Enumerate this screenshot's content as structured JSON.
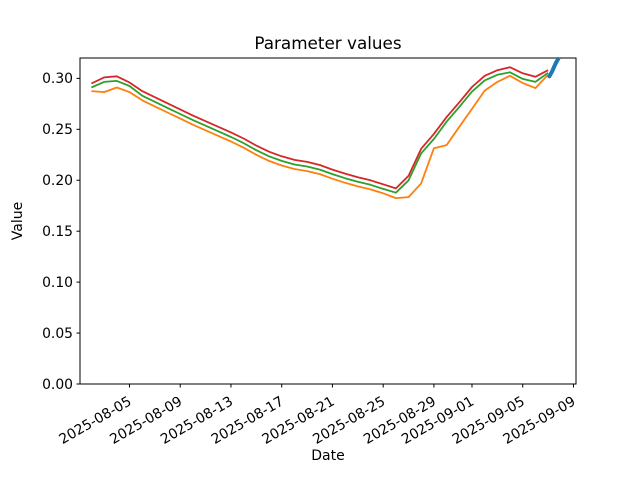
{
  "chart_data": {
    "type": "line",
    "title": "Parameter values",
    "xlabel": "Date",
    "ylabel": "Value",
    "grid": false,
    "legend": "none",
    "text_color": "#000000",
    "axis_color": "#000000",
    "x_dates": [
      "2025-08-02",
      "2025-08-03",
      "2025-08-04",
      "2025-08-05",
      "2025-08-06",
      "2025-08-07",
      "2025-08-08",
      "2025-08-09",
      "2025-08-10",
      "2025-08-11",
      "2025-08-12",
      "2025-08-13",
      "2025-08-14",
      "2025-08-15",
      "2025-08-16",
      "2025-08-17",
      "2025-08-18",
      "2025-08-19",
      "2025-08-20",
      "2025-08-21",
      "2025-08-22",
      "2025-08-23",
      "2025-08-24",
      "2025-08-25",
      "2025-08-26",
      "2025-08-27",
      "2025-08-28",
      "2025-08-29",
      "2025-08-30",
      "2025-08-31",
      "2025-09-01",
      "2025-09-02",
      "2025-09-03",
      "2025-09-04",
      "2025-09-05",
      "2025-09-06",
      "2025-09-07"
    ],
    "series": [
      {
        "name": "orange-line",
        "color": "#ff7f0e",
        "linewidth": 1.8,
        "values": [
          0.2875,
          0.2865,
          0.291,
          0.2865,
          0.2785,
          0.2725,
          0.2665,
          0.2605,
          0.2545,
          0.249,
          0.2435,
          0.238,
          0.232,
          0.225,
          0.219,
          0.2145,
          0.211,
          0.209,
          0.206,
          0.2015,
          0.1975,
          0.194,
          0.191,
          0.1872,
          0.1825,
          0.1835,
          0.197,
          0.2315,
          0.2345,
          0.2525,
          0.27,
          0.288,
          0.2965,
          0.3025,
          0.2955,
          0.2905,
          0.3035
        ]
      },
      {
        "name": "green-line",
        "color": "#2ca02c",
        "linewidth": 1.8,
        "values": [
          0.291,
          0.2965,
          0.2975,
          0.2925,
          0.283,
          0.277,
          0.271,
          0.265,
          0.259,
          0.2535,
          0.248,
          0.2425,
          0.2365,
          0.2295,
          0.2235,
          0.219,
          0.2155,
          0.2135,
          0.2105,
          0.206,
          0.202,
          0.1985,
          0.1955,
          0.1915,
          0.1878,
          0.2,
          0.2265,
          0.2405,
          0.2575,
          0.272,
          0.287,
          0.298,
          0.3035,
          0.306,
          0.2995,
          0.2965,
          0.3055
        ]
      },
      {
        "name": "red-line",
        "color": "#d62728",
        "linewidth": 1.8,
        "values": [
          0.295,
          0.301,
          0.302,
          0.296,
          0.2875,
          0.2815,
          0.2755,
          0.2695,
          0.2635,
          0.258,
          0.2525,
          0.247,
          0.241,
          0.234,
          0.228,
          0.2235,
          0.22,
          0.218,
          0.215,
          0.2105,
          0.2065,
          0.203,
          0.2,
          0.196,
          0.192,
          0.2045,
          0.231,
          0.2455,
          0.262,
          0.2765,
          0.2915,
          0.3025,
          0.308,
          0.311,
          0.305,
          0.3015,
          0.308
        ]
      }
    ],
    "highlight_series": {
      "name": "blue-line",
      "color": "#1f77b4",
      "linewidth": 4,
      "x_day_offsets": [
        36.1,
        36.3,
        36.5,
        36.65,
        36.8
      ],
      "values": [
        0.302,
        0.3065,
        0.312,
        0.316,
        0.319
      ]
    },
    "xticks": [
      {
        "label": "2025-08-05",
        "day_offset": 3
      },
      {
        "label": "2025-08-09",
        "day_offset": 7
      },
      {
        "label": "2025-08-13",
        "day_offset": 11
      },
      {
        "label": "2025-08-17",
        "day_offset": 15
      },
      {
        "label": "2025-08-21",
        "day_offset": 19
      },
      {
        "label": "2025-08-25",
        "day_offset": 23
      },
      {
        "label": "2025-08-29",
        "day_offset": 27
      },
      {
        "label": "2025-09-01",
        "day_offset": 30
      },
      {
        "label": "2025-09-05",
        "day_offset": 34
      },
      {
        "label": "2025-09-09",
        "day_offset": 38
      }
    ],
    "yticks": [
      {
        "label": "0.00",
        "value": 0.0
      },
      {
        "label": "0.05",
        "value": 0.05
      },
      {
        "label": "0.10",
        "value": 0.1
      },
      {
        "label": "0.15",
        "value": 0.15
      },
      {
        "label": "0.20",
        "value": 0.2
      },
      {
        "label": "0.25",
        "value": 0.25
      },
      {
        "label": "0.30",
        "value": 0.3
      }
    ],
    "ylim": [
      0,
      0.32
    ],
    "xlim_day_offsets": [
      -0.9,
      38.2
    ],
    "xtick_rotation_deg": 30
  }
}
